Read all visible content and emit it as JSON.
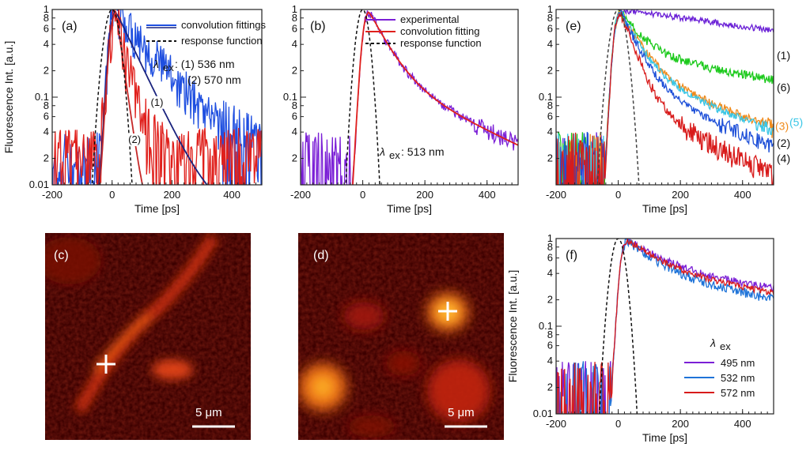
{
  "chart_data": [
    {
      "id": "a",
      "type": "line",
      "panel_label": "(a)",
      "xlabel": "Time [ps]",
      "ylabel": "Fluorescence Int. [a.u.]",
      "xlim": [
        -200,
        500
      ],
      "ylim": [
        0.01,
        1
      ],
      "yscale": "log",
      "xticks": [
        -200,
        0,
        200,
        400
      ],
      "yticks": [
        {
          "v": 0.01,
          "t": "0.01"
        },
        {
          "v": 0.02,
          "t": "2"
        },
        {
          "v": 0.04,
          "t": "4"
        },
        {
          "v": 0.06,
          "t": "6"
        },
        {
          "v": 0.08,
          "t": "8"
        },
        {
          "v": 0.1,
          "t": "0.1"
        },
        {
          "v": 0.2,
          "t": "2"
        },
        {
          "v": 0.4,
          "t": "4"
        },
        {
          "v": 0.6,
          "t": "6"
        },
        {
          "v": 0.8,
          "t": "8"
        },
        {
          "v": 1,
          "t": "1"
        }
      ],
      "legend": [
        "convolution fittings",
        "response function"
      ],
      "excitation_label": "λ",
      "excitation_sub": "ex",
      "excitation_lines": [
        ": (1) 536 nm",
        "(2) 570 nm"
      ],
      "curve_labels": [
        "(1)",
        "(2)"
      ],
      "series": [
        {
          "name": "(1) 536 nm",
          "color": "#1f4fe0",
          "kind": "noisy",
          "t0": 10,
          "tau": 110,
          "tau2": 0,
          "floor": 0.012,
          "noise": 0.55
        },
        {
          "name": "(2) 570 nm",
          "color": "#e0201c",
          "kind": "noisy",
          "t0": 12,
          "tau": 28,
          "tau2": 0,
          "floor": 0.018,
          "noise": 0.7
        },
        {
          "name": "fit (1)",
          "color": "#1a237e",
          "kind": "fit",
          "t0": 10,
          "tau": 60,
          "tau2": 0,
          "floor": 0.004
        },
        {
          "name": "fit (2)",
          "color": "#c62828",
          "kind": "fit",
          "t0": 12,
          "tau": 18,
          "tau2": 0,
          "floor": 0.003
        },
        {
          "name": "response function",
          "color": "#111111",
          "kind": "irf",
          "t0": 0,
          "sigma": 22
        }
      ]
    },
    {
      "id": "b",
      "type": "line",
      "panel_label": "(b)",
      "xlabel": "Time [ps]",
      "ylabel": "",
      "xlim": [
        -200,
        500
      ],
      "ylim": [
        0.01,
        1
      ],
      "yscale": "log",
      "xticks": [
        -200,
        0,
        200,
        400
      ],
      "yticks": [
        {
          "v": 0.02,
          "t": "2"
        },
        {
          "v": 0.04,
          "t": "4"
        },
        {
          "v": 0.06,
          "t": "6"
        },
        {
          "v": 0.08,
          "t": "8"
        },
        {
          "v": 0.1,
          "t": "0.1"
        },
        {
          "v": 0.2,
          "t": "2"
        },
        {
          "v": 0.4,
          "t": "4"
        },
        {
          "v": 0.6,
          "t": "6"
        },
        {
          "v": 0.8,
          "t": "8"
        },
        {
          "v": 1,
          "t": "1"
        }
      ],
      "legend": [
        "experimental",
        "convolution fitting",
        "response function"
      ],
      "excitation_label": "λ",
      "excitation_sub": "ex",
      "excitation_lines": [
        ": 513 nm"
      ],
      "series": [
        {
          "name": "experimental",
          "color": "#7b1fd6",
          "kind": "noisy",
          "t0": 18,
          "tau": 55,
          "tau2": 260,
          "a2": 0.18,
          "floor": 0,
          "noise": 0.12
        },
        {
          "name": "convolution fitting",
          "color": "#e0201c",
          "kind": "fit",
          "t0": 18,
          "tau": 55,
          "tau2": 260,
          "a2": 0.18,
          "floor": 0
        },
        {
          "name": "response function",
          "color": "#111111",
          "kind": "irf",
          "t0": 0,
          "sigma": 18
        }
      ]
    },
    {
      "id": "e",
      "type": "line",
      "panel_label": "(e)",
      "xlabel": "Time [ps]",
      "ylabel": "",
      "xlim": [
        -200,
        500
      ],
      "ylim": [
        0.01,
        1
      ],
      "yscale": "log",
      "xticks": [
        -200,
        0,
        200,
        400
      ],
      "yticks": [
        {
          "v": 0.02,
          "t": "2"
        },
        {
          "v": 0.04,
          "t": "4"
        },
        {
          "v": 0.06,
          "t": "6"
        },
        {
          "v": 0.08,
          "t": "8"
        },
        {
          "v": 0.1,
          "t": "0.1"
        },
        {
          "v": 0.2,
          "t": "2"
        },
        {
          "v": 0.4,
          "t": "4"
        },
        {
          "v": 0.6,
          "t": "6"
        },
        {
          "v": 0.8,
          "t": "8"
        },
        {
          "v": 1,
          "t": "1"
        }
      ],
      "curve_labels": [
        "(1)",
        "(6)",
        "(3)",
        "(5)",
        "(2)",
        "(4)"
      ],
      "series": [
        {
          "name": "(1)",
          "color": "#6a1fd6",
          "kind": "noisy",
          "t0": 5,
          "tau": 900,
          "tau2": 0,
          "floor": 0,
          "noise": 0.08
        },
        {
          "name": "(6)",
          "color": "#19c919",
          "kind": "noisy",
          "t0": 5,
          "tau": 60,
          "tau2": 700,
          "a2": 0.32,
          "floor": 0,
          "noise": 0.12
        },
        {
          "name": "(3)",
          "color": "#f08a1a",
          "kind": "noisy",
          "t0": 5,
          "tau": 55,
          "tau2": 330,
          "a2": 0.2,
          "floor": 0,
          "noise": 0.12
        },
        {
          "name": "(5)",
          "color": "#38c6e6",
          "kind": "noisy",
          "t0": 5,
          "tau": 55,
          "tau2": 340,
          "a2": 0.18,
          "floor": 0,
          "noise": 0.1
        },
        {
          "name": "(2)",
          "color": "#1d4fd8",
          "kind": "noisy",
          "t0": 5,
          "tau": 50,
          "tau2": 300,
          "a2": 0.14,
          "floor": 0,
          "noise": 0.1
        },
        {
          "name": "(4)",
          "color": "#d81b1b",
          "kind": "noisy",
          "t0": 5,
          "tau": 40,
          "tau2": 260,
          "a2": 0.09,
          "floor": 0,
          "noise": 0.14
        },
        {
          "name": "response function",
          "color": "#444444",
          "kind": "irf",
          "t0": 0,
          "sigma": 22
        }
      ]
    },
    {
      "id": "f",
      "type": "line",
      "panel_label": "(f)",
      "xlabel": "Time [ps]",
      "ylabel": "Fluorescence Int. [a.u.]",
      "xlim": [
        -200,
        500
      ],
      "ylim": [
        0.01,
        1
      ],
      "yscale": "log",
      "xticks": [
        -200,
        0,
        200,
        400
      ],
      "yticks": [
        {
          "v": 0.01,
          "t": "0.01"
        },
        {
          "v": 0.02,
          "t": "2"
        },
        {
          "v": 0.04,
          "t": "4"
        },
        {
          "v": 0.06,
          "t": "6"
        },
        {
          "v": 0.08,
          "t": "8"
        },
        {
          "v": 0.1,
          "t": "0.1"
        },
        {
          "v": 0.2,
          "t": "2"
        },
        {
          "v": 0.4,
          "t": "4"
        },
        {
          "v": 0.6,
          "t": "6"
        },
        {
          "v": 0.8,
          "t": "8"
        },
        {
          "v": 1,
          "t": "1"
        }
      ],
      "legend_title_main": "λ",
      "legend_title_sub": "ex",
      "legend": [
        "495 nm",
        "532 nm",
        "572 nm"
      ],
      "series": [
        {
          "name": "495 nm",
          "color": "#7b1fd6",
          "kind": "noisy",
          "t0": 25,
          "tau": 110,
          "tau2": 900,
          "a2": 0.45,
          "floor": 0,
          "noise": 0.1
        },
        {
          "name": "532 nm",
          "color": "#1e73d8",
          "kind": "noisy",
          "t0": 25,
          "tau": 100,
          "tau2": 750,
          "a2": 0.38,
          "floor": 0,
          "noise": 0.13
        },
        {
          "name": "572 nm",
          "color": "#d81b1b",
          "kind": "noisy",
          "t0": 25,
          "tau": 105,
          "tau2": 820,
          "a2": 0.42,
          "floor": 0,
          "noise": 0.08
        },
        {
          "name": "response function",
          "color": "#111111",
          "kind": "irf",
          "t0": 0,
          "sigma": 20
        }
      ]
    }
  ],
  "images": [
    {
      "id": "c",
      "panel_label": "(c)",
      "scale_label": "5 μm",
      "marker": "+"
    },
    {
      "id": "d",
      "panel_label": "(d)",
      "scale_label": "5 μm",
      "marker": "+"
    }
  ]
}
